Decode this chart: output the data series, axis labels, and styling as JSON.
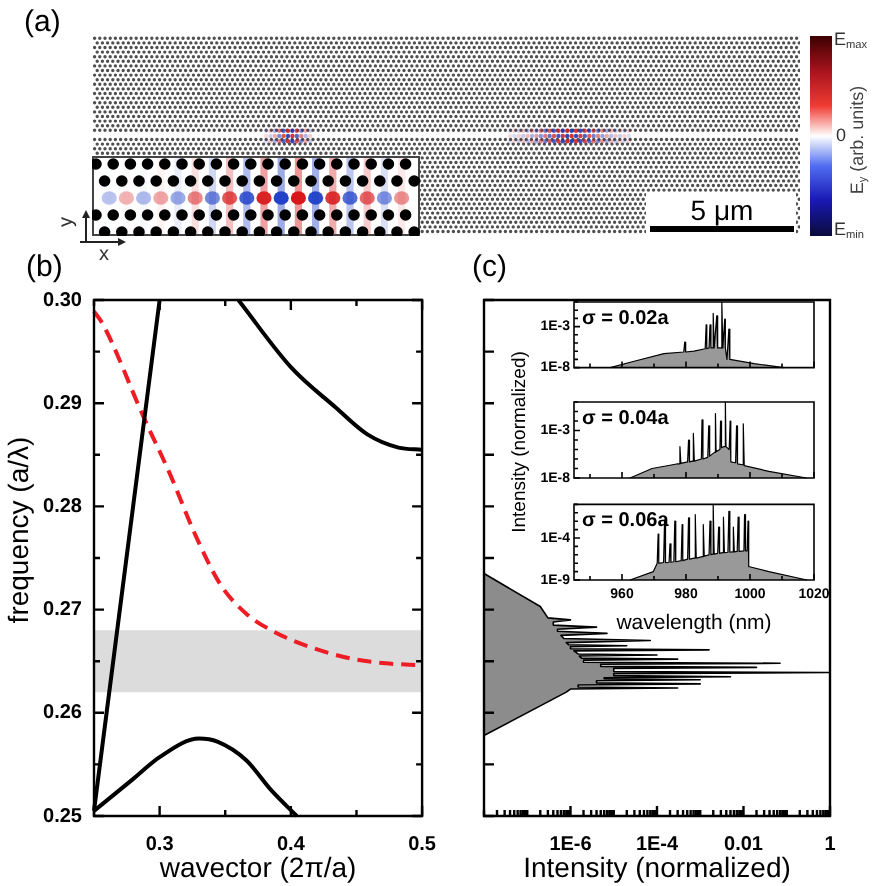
{
  "chart_data": [
    {
      "type": "other",
      "title": "(a)",
      "clabel": "E$_{y}$ (arb. units)",
      "annotations": [
        "E$_{max}$",
        "0",
        "E$_{min}$",
        "5 μm",
        "y",
        "x"
      ]
    },
    {
      "type": "line",
      "title": "(b)",
      "xlabel": "wavector (2π/a)",
      "ylabel": "frequency (a/λ)",
      "xlim": [
        0.25,
        0.5
      ],
      "xticks": [
        {
          "value": 0.25,
          "label": null
        },
        0.3,
        {
          "value": 0.35,
          "label": null
        },
        0.4,
        {
          "value": 0.45,
          "label": null
        },
        0.5
      ],
      "ylim": [
        0.25,
        0.3
      ],
      "yticks": [
        0.25,
        {
          "value": 0.255,
          "label": null
        },
        0.26,
        {
          "value": 0.265,
          "label": null
        },
        0.27,
        {
          "value": 0.275,
          "label": null
        },
        0.28,
        {
          "value": 0.285,
          "label": null
        },
        0.29,
        {
          "value": 0.295,
          "label": null
        },
        {
          "value": 0.3,
          "label": "0.30"
        }
      ],
      "series": [
        {
          "color": "#000000",
          "x": [
            0.25,
            0.3
          ],
          "values": [
            0.2505,
            0.3
          ]
        },
        {
          "color": "#000000",
          "x": [
            0.25,
            0.279,
            0.3,
            0.33,
            0.344,
            0.366,
            0.385,
            0.4045
          ],
          "values": [
            0.2505,
            0.2535,
            0.2557,
            0.2575,
            0.2572,
            0.2554,
            0.2525,
            0.25
          ]
        },
        {
          "color": "#000000",
          "x": [
            0.36,
            0.4,
            0.434,
            0.458,
            0.482,
            0.5
          ],
          "values": [
            0.3,
            0.2935,
            0.2896,
            0.287,
            0.2857,
            0.2855
          ]
        },
        {
          "color": "#ee1c24",
          "line_style": "dashed",
          "x": [
            0.25,
            0.257,
            0.288,
            0.308,
            0.327,
            0.346,
            0.366,
            0.385,
            0.414,
            0.448,
            0.472,
            0.5
          ],
          "values": [
            0.2989,
            0.2976,
            0.2886,
            0.2831,
            0.2773,
            0.2725,
            0.2696,
            0.268,
            0.2664,
            0.2652,
            0.2648,
            0.2646
          ]
        }
      ],
      "bands": [
        {
          "axis": "y",
          "from": 0.262,
          "to": 0.268,
          "color": "#dcdcdc"
        }
      ]
    },
    {
      "type": "area",
      "orientation": "horizontal",
      "title": "(c)",
      "xlabel": "Intensity (normalized)",
      "log": "x",
      "xlim": [
        1e-08,
        1
      ],
      "xticks": [
        {
          "value": 1e-08,
          "label": null
        },
        {
          "value": 2e-08,
          "label": null
        },
        {
          "value": 3e-08,
          "label": null
        },
        {
          "value": 4e-08,
          "label": null
        },
        {
          "value": 5e-08,
          "label": null
        },
        {
          "value": 6e-08,
          "label": null
        },
        {
          "value": 7e-08,
          "label": null
        },
        {
          "value": 8e-08,
          "label": null
        },
        {
          "value": 9e-08,
          "label": null
        },
        {
          "value": 1e-07,
          "label": null
        },
        {
          "value": 2e-07,
          "label": null
        },
        {
          "value": 3e-07,
          "label": null
        },
        {
          "value": 4e-07,
          "label": null
        },
        {
          "value": 5e-07,
          "label": null
        },
        {
          "value": 6e-07,
          "label": null
        },
        {
          "value": 7e-07,
          "label": null
        },
        {
          "value": 8e-07,
          "label": null
        },
        {
          "value": 9e-07,
          "label": null
        },
        {
          "value": 1e-06,
          "label": "1E-6"
        },
        {
          "value": 2e-06,
          "label": null
        },
        {
          "value": 3e-06,
          "label": null
        },
        {
          "value": 4e-06,
          "label": null
        },
        {
          "value": 5e-06,
          "label": null
        },
        {
          "value": 6e-06,
          "label": null
        },
        {
          "value": 7e-06,
          "label": null
        },
        {
          "value": 8e-06,
          "label": null
        },
        {
          "value": 9e-06,
          "label": null
        },
        {
          "value": 1e-05,
          "label": null
        },
        {
          "value": 2e-05,
          "label": null
        },
        {
          "value": 3e-05,
          "label": null
        },
        {
          "value": 4e-05,
          "label": null
        },
        {
          "value": 5e-05,
          "label": null
        },
        {
          "value": 6e-05,
          "label": null
        },
        {
          "value": 7e-05,
          "label": null
        },
        {
          "value": 8e-05,
          "label": null
        },
        {
          "value": 9e-05,
          "label": null
        },
        {
          "value": 0.0001,
          "label": "1E-4"
        },
        {
          "value": 0.0002,
          "label": null
        },
        {
          "value": 0.0003,
          "label": null
        },
        {
          "value": 0.0004,
          "label": null
        },
        {
          "value": 0.0005,
          "label": null
        },
        {
          "value": 0.0006,
          "label": null
        },
        {
          "value": 0.0007,
          "label": null
        },
        {
          "value": 0.0008,
          "label": null
        },
        {
          "value": 0.0009,
          "label": null
        },
        {
          "value": 0.001,
          "label": null
        },
        {
          "value": 0.002,
          "label": null
        },
        {
          "value": 0.003,
          "label": null
        },
        {
          "value": 0.004,
          "label": null
        },
        {
          "value": 0.005,
          "label": null
        },
        {
          "value": 0.006,
          "label": null
        },
        {
          "value": 0.007,
          "label": null
        },
        {
          "value": 0.008,
          "label": null
        },
        {
          "value": 0.009,
          "label": null
        },
        0.01,
        {
          "value": 0.02,
          "label": null
        },
        {
          "value": 0.03,
          "label": null
        },
        {
          "value": 0.04,
          "label": null
        },
        {
          "value": 0.05,
          "label": null
        },
        {
          "value": 0.06,
          "label": null
        },
        {
          "value": 0.07,
          "label": null
        },
        {
          "value": 0.08,
          "label": null
        },
        {
          "value": 0.09,
          "label": null
        },
        {
          "value": 0.1,
          "label": null
        },
        {
          "value": 0.2,
          "label": null
        },
        {
          "value": 0.3,
          "label": null
        },
        {
          "value": 0.4,
          "label": null
        },
        {
          "value": 0.5,
          "label": null
        },
        {
          "value": 0.6,
          "label": null
        },
        {
          "value": 0.7,
          "label": null
        },
        {
          "value": 0.8,
          "label": null
        },
        {
          "value": 0.9,
          "label": null
        },
        1
      ],
      "ylim": [
        0.25,
        0.3
      ],
      "yticks": [
        0.25,
        0.255,
        0.26,
        0.265,
        0.27,
        0.275,
        0.28,
        0.285,
        0.29,
        0.295,
        0.3
      ],
      "tick_labels": "x",
      "color": "#8c8c8c",
      "x": [
        0.2735,
        0.2703,
        0.2692,
        0.269,
        0.2688,
        0.2685,
        0.2683,
        0.2681,
        0.2679,
        0.2677,
        0.2675,
        0.2672,
        0.267,
        0.2668,
        0.2666,
        0.2665,
        0.2664,
        0.2662,
        0.2661,
        0.266,
        0.2657,
        0.2656,
        0.2655,
        0.2653,
        0.2652,
        0.2651,
        0.2649,
        0.2648,
        0.2647,
        0.2645,
        0.2644,
        0.2643,
        0.264,
        0.2639,
        0.2638,
        0.2636,
        0.2635,
        0.2634,
        0.2633,
        0.2632,
        0.2631,
        0.2629,
        0.2628,
        0.2627,
        0.2625,
        0.2624,
        0.2623,
        0.262,
        0.2578
      ],
      "values": [
        1e-08,
        2e-07,
        3e-07,
        1e-06,
        4e-07,
        4e-07,
        4e-06,
        5e-07,
        5e-07,
        7e-06,
        6e-07,
        7e-07,
        7e-05,
        8e-07,
        9e-07,
        2e-05,
        1e-06,
        1e-06,
        0.0016,
        1.2e-06,
        1.5e-06,
        0.0001,
        1.6e-06,
        1.8e-06,
        0.0003,
        2e-06,
        2e-06,
        0.07,
        5e-06,
        5e-06,
        0.02,
        1e-05,
        1e-05,
        1,
        1e-05,
        1e-05,
        0.005,
        6e-06,
        6e-06,
        0.001,
        4e-06,
        4e-06,
        0.001,
        1.5e-06,
        1.5e-06,
        0.0003,
        1e-06,
        8e-07,
        1e-08
      ]
    },
    {
      "type": "area",
      "annotations": [
        "σ = 0.02a"
      ],
      "log": "y",
      "xlim": [
        945,
        1020
      ],
      "xticks": [
        {
          "value": 950,
          "label": null
        },
        960,
        {
          "value": 970,
          "label": null
        },
        980,
        {
          "value": 990,
          "label": null
        },
        1000,
        {
          "value": 1010,
          "label": null
        },
        1020
      ],
      "ylim": [
        1e-08,
        1
      ],
      "yticks": [
        {
          "value": 1e-08,
          "label": "1E-8"
        },
        {
          "value": 1e-07,
          "label": null
        },
        {
          "value": 1e-06,
          "label": null
        },
        {
          "value": 1e-05,
          "label": null
        },
        {
          "value": 0.0001,
          "label": null
        },
        {
          "value": 0.001,
          "label": "1E-3"
        },
        {
          "value": 0.01,
          "label": null
        },
        {
          "value": 0.1,
          "label": null
        },
        {
          "value": 1,
          "label": null
        }
      ],
      "tick_labels": "y",
      "color": "#999999",
      "x": [
        956.3,
        963.8,
        973.1,
        979.3,
        979.6,
        979.9,
        982.5,
        986,
        986.3,
        986.5,
        987.2,
        987.5,
        987.8,
        988.2,
        988.5,
        988.8,
        989.3,
        989.6,
        989.9,
        990.9,
        991.2,
        991.5,
        991.8,
        992.1,
        992.3,
        992.8,
        993.1,
        993.4,
        993.7,
        1001.3,
        1010.6
      ],
      "values": [
        1e-08,
        6e-08,
        5e-07,
        8e-07,
        1.3e-05,
        8e-07,
        1e-06,
        2e-06,
        0.0016,
        2e-06,
        2.5e-06,
        0.0016,
        2.5e-06,
        2.5e-06,
        0.04,
        2.5e-06,
        2.5e-06,
        0.02,
        2.5e-06,
        2.5e-06,
        1,
        2.5e-06,
        2.5e-06,
        0.008,
        2.5e-06,
        1e-07,
        1e-07,
        0.0005,
        1e-07,
        3e-08,
        1e-08
      ]
    },
    {
      "type": "area",
      "annotations": [
        "σ = 0.04a"
      ],
      "ylabel": "Intensity (normalized)",
      "log": "y",
      "xlim": [
        945,
        1020
      ],
      "xticks": [
        {
          "value": 950,
          "label": null
        },
        960,
        {
          "value": 970,
          "label": null
        },
        980,
        {
          "value": 990,
          "label": null
        },
        1000,
        {
          "value": 1010,
          "label": null
        },
        1020
      ],
      "ylim": [
        1e-08,
        1
      ],
      "yticks": [
        {
          "value": 1e-08,
          "label": "1E-8"
        },
        {
          "value": 1e-07,
          "label": null
        },
        {
          "value": 1e-06,
          "label": null
        },
        {
          "value": 1e-05,
          "label": null
        },
        {
          "value": 0.0001,
          "label": null
        },
        {
          "value": 0.001,
          "label": "1E-3"
        },
        {
          "value": 0.01,
          "label": null
        },
        {
          "value": 0.1,
          "label": null
        },
        {
          "value": 1,
          "label": null
        }
      ],
      "tick_labels": "y",
      "color": "#999999",
      "x": [
        962.5,
        969.4,
        977.1,
        977.8,
        978.1,
        978.4,
        980.5,
        980.8,
        981.1,
        982,
        982.3,
        982.6,
        984.8,
        985,
        985.3,
        986.8,
        987.1,
        987.4,
        988.9,
        989.2,
        989.4,
        990.6,
        990.8,
        991.1,
        991.7,
        992,
        992.3,
        992.5,
        993.5,
        993.8,
        994,
        995.5,
        995.8,
        996.1,
        997.6,
        997.9,
        998.2,
        1005.9,
        1017.7
      ],
      "values": [
        1e-08,
        1e-07,
        3e-07,
        3e-07,
        2e-05,
        3.5e-07,
        5e-07,
        0.0001,
        5e-07,
        6e-07,
        0.0005,
        6e-07,
        1e-06,
        0.013,
        1e-06,
        1.5e-06,
        0.003,
        2e-06,
        5e-06,
        0.06,
        6e-06,
        1e-05,
        0.01,
        1.5e-05,
        2e-05,
        2e-05,
        1,
        2e-05,
        1e-05,
        0.01,
        5e-07,
        4e-07,
        0.003,
        3e-07,
        2.5e-07,
        0.005,
        2e-07,
        5e-08,
        1e-08
      ]
    },
    {
      "type": "area",
      "annotations": [
        "σ = 0.06a"
      ],
      "xlabel": "wavelength (nm)",
      "log": "y",
      "xlim": [
        945,
        1020
      ],
      "xticks": [
        {
          "value": 950,
          "label": null
        },
        960,
        {
          "value": 970,
          "label": null
        },
        980,
        {
          "value": 990,
          "label": null
        },
        1000,
        {
          "value": 1010,
          "label": null
        },
        1020
      ],
      "ylim": [
        1e-09,
        1
      ],
      "yticks": [
        {
          "value": 1e-09,
          "label": "1E-9"
        },
        {
          "value": 1e-08,
          "label": null
        },
        {
          "value": 1e-07,
          "label": null
        },
        {
          "value": 1e-06,
          "label": null
        },
        {
          "value": 1e-05,
          "label": null
        },
        {
          "value": 0.0001,
          "label": "1E-4"
        },
        {
          "value": 0.001,
          "label": null
        },
        {
          "value": 0.01,
          "label": null
        },
        {
          "value": 0.1,
          "label": null
        },
        {
          "value": 1,
          "label": null
        }
      ],
      "color": "#999999",
      "x": [
        962.5,
        969.8,
        971,
        971.3,
        971.5,
        971.9,
        973,
        973.3,
        973.6,
        974.7,
        975,
        975.3,
        976.2,
        976.5,
        976.8,
        978.5,
        978.8,
        979,
        980.5,
        980.8,
        981.1,
        982.6,
        982.9,
        983.2,
        985.1,
        985.4,
        985.7,
        987.2,
        987.5,
        987.8,
        988.2,
        988.5,
        988.8,
        989.9,
        990.2,
        990.5,
        991.4,
        991.7,
        992,
        993.1,
        993.4,
        993.7,
        994.5,
        994.8,
        995.1,
        996,
        996.3,
        996.6,
        998.1,
        998.3,
        998.6,
        999.1,
        999.4,
        999.6,
        1005.9,
        1017.8
      ],
      "values": [
        1e-09,
        1e-08,
        1e-07,
        0.0003,
        1e-07,
        1e-07,
        1.2e-07,
        0.01,
        1.2e-07,
        1.3e-07,
        2e-05,
        1.3e-07,
        1.5e-07,
        0.01,
        1.5e-07,
        2e-07,
        0.004,
        2e-07,
        3e-07,
        0.025,
        3e-07,
        4e-07,
        0.06,
        4e-07,
        6e-07,
        0.004,
        7e-07,
        1e-06,
        0.01,
        1e-06,
        1.2e-06,
        1,
        1.2e-06,
        1.5e-06,
        0.002,
        1.5e-06,
        1.8e-06,
        0.03,
        1.8e-06,
        2e-06,
        0.15,
        2e-06,
        2.2e-06,
        0.002,
        2.2e-06,
        2.5e-06,
        0.03,
        2.5e-06,
        3e-06,
        0.06,
        3e-06,
        3e-06,
        0.01,
        4e-08,
        1e-08,
        1e-09
      ]
    }
  ]
}
